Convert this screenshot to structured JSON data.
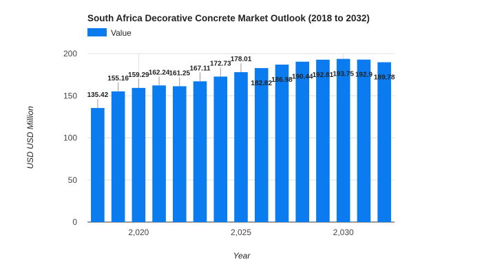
{
  "chart_data": {
    "type": "bar",
    "title": "South Africa Decorative Concrete Market Outlook (2018 to 2032)",
    "xlabel": "Year",
    "ylabel": "USD USD Million",
    "ylim": [
      0,
      200
    ],
    "yticks": [
      0,
      50,
      100,
      150,
      200
    ],
    "xticks": [
      {
        "value": 2020,
        "label": "2,020"
      },
      {
        "value": 2025,
        "label": "2,025"
      },
      {
        "value": 2030,
        "label": "2,030"
      }
    ],
    "grid": true,
    "legend": "top-left",
    "x": [
      2018,
      2019,
      2020,
      2021,
      2022,
      2023,
      2024,
      2025,
      2026,
      2027,
      2028,
      2029,
      2030,
      2031,
      2032
    ],
    "series": [
      {
        "name": "Value",
        "color": "#0a7cf0",
        "values": [
          135.42,
          155.16,
          159.29,
          162.24,
          161.25,
          167.11,
          172.73,
          178.01,
          182.82,
          186.98,
          190.44,
          192.81,
          193.75,
          192.9,
          189.78
        ],
        "labels": [
          "135.42",
          "155.16",
          "159.29",
          "162.24",
          "161.25",
          "167.11",
          "172.73",
          "178.01",
          "182.82",
          "186.98",
          "190.44",
          "192.81",
          "193.75",
          "192.9",
          "189.78"
        ]
      }
    ]
  }
}
